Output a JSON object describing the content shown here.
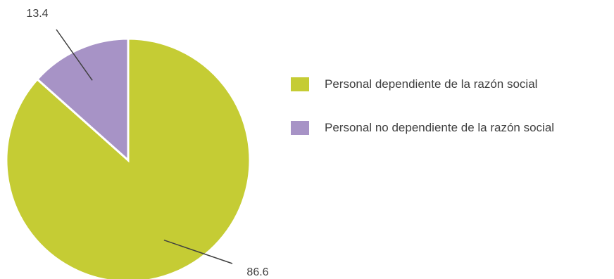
{
  "chart_data": {
    "type": "pie",
    "slices": [
      {
        "label": "Personal dependiente de la razón social",
        "value": 86.6,
        "value_label": "86.6",
        "color": "#c5cc34"
      },
      {
        "label": "Personal no dependiente de la razón social",
        "value": 13.4,
        "value_label": "13.4",
        "color": "#a793c6"
      }
    ],
    "legend_position": "right",
    "data_labels": "outside-with-leader-lines"
  }
}
